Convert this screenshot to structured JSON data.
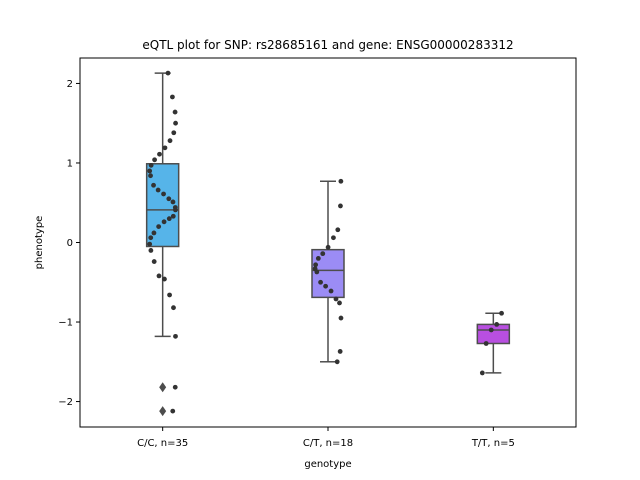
{
  "chart_data": {
    "type": "box",
    "title": "eQTL plot for SNP: rs28685161 and gene: ENSG00000283312",
    "xlabel": "genotype",
    "ylabel": "phenotype",
    "ylim": [
      -2.32,
      2.32
    ],
    "yticks": [
      -2,
      -1,
      0,
      1,
      2
    ],
    "grid": false,
    "categories": [
      "C/C, n=35",
      "C/T, n=18",
      "T/T, n=5"
    ],
    "colors": [
      "#56b4e9",
      "#9b8cf5",
      "#b84fe0"
    ],
    "boxes": [
      {
        "category": "C/C, n=35",
        "q1": -0.05,
        "median": 0.41,
        "q3": 0.99,
        "whisker_low": -1.18,
        "whisker_high": 2.13,
        "outliers": [
          -1.82,
          -2.12
        ],
        "points": [
          2.13,
          1.83,
          1.64,
          1.5,
          1.38,
          1.28,
          1.19,
          1.11,
          1.04,
          0.97,
          0.9,
          0.84,
          0.72,
          0.66,
          0.61,
          0.55,
          0.51,
          0.44,
          0.41,
          0.33,
          0.3,
          0.26,
          0.2,
          0.12,
          0.06,
          -0.02,
          -0.1,
          -0.24,
          -0.42,
          -0.46,
          -0.66,
          -0.82,
          -1.18,
          -1.82,
          -2.12
        ]
      },
      {
        "category": "C/T, n=18",
        "q1": -0.69,
        "median": -0.35,
        "q3": -0.09,
        "whisker_low": -1.5,
        "whisker_high": 0.77,
        "outliers": [],
        "points": [
          0.77,
          0.46,
          0.16,
          0.06,
          -0.06,
          -0.14,
          -0.2,
          -0.28,
          -0.33,
          -0.37,
          -0.5,
          -0.55,
          -0.61,
          -0.71,
          -0.76,
          -0.95,
          -1.37,
          -1.5
        ]
      },
      {
        "category": "T/T, n=5",
        "q1": -1.27,
        "median": -1.1,
        "q3": -1.03,
        "whisker_low": -1.64,
        "whisker_high": -0.89,
        "outliers": [],
        "points": [
          -0.89,
          -1.03,
          -1.1,
          -1.27,
          -1.64
        ]
      }
    ]
  }
}
